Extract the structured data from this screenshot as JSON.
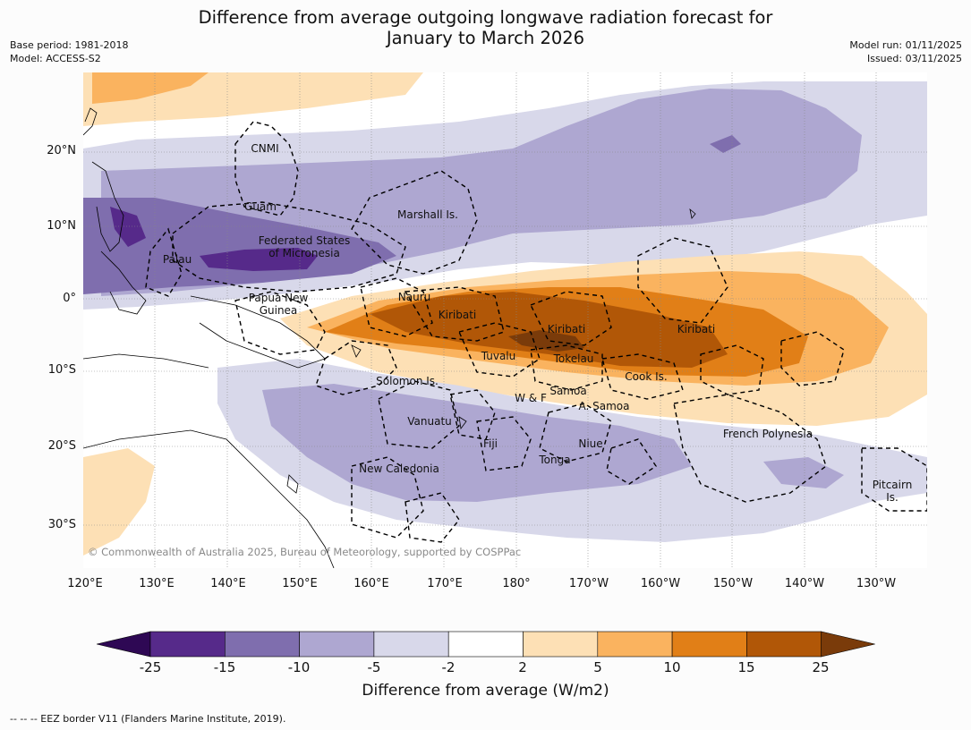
{
  "title_line1": "Difference from average outgoing longwave radiation forecast for",
  "title_line2": "January to March 2026",
  "base_period": "Base period: 1981-2018",
  "model": "Model: ACCESS-S2",
  "model_run": "Model run: 01/11/2025",
  "issued": "Issued: 03/11/2025",
  "lat_labels": [
    "20°N",
    "10°N",
    "0°",
    "10°S",
    "20°S",
    "30°S"
  ],
  "lon_labels": [
    "120°E",
    "130°E",
    "140°E",
    "150°E",
    "160°E",
    "170°E",
    "180°",
    "170°W",
    "160°W",
    "150°W",
    "140°W",
    "130°W"
  ],
  "regions": {
    "cnmi": "CNMI",
    "guam": "Guam",
    "marshall": "Marshall Is.",
    "fsm1": "Federated States",
    "fsm2": "of Micronesia",
    "palau": "Palau",
    "png1": "Papua New",
    "png2": "Guinea",
    "nauru": "Nauru",
    "kiribati_w": "Kiribati",
    "kiribati_c": "Kiribati",
    "kiribati_e": "Kiribati",
    "tuvalu": "Tuvalu",
    "tokelau": "Tokelau",
    "cook": "Cook Is.",
    "solomon": "Solomon Is.",
    "wf": "W & F",
    "samoa": "Samoa",
    "asamoa": "A. Samoa",
    "vanuatu": "Vanuatu",
    "fiji": "Fiji",
    "niue": "Niue",
    "tonga": "Tonga",
    "newcal": "New Caledonia",
    "frpoly": "French Polynesia",
    "pitcairn1": "Pitcairn",
    "pitcairn2": "Is."
  },
  "copyright": "© Commonwealth of Australia 2025, Bureau of Meteorology, supported by COSPPac",
  "colorbar": {
    "ticks": [
      "-25",
      "-15",
      "-10",
      "-5",
      "-2",
      "2",
      "5",
      "10",
      "15",
      "25"
    ],
    "colors": [
      "#562a8a",
      "#7f6eae",
      "#aea7d1",
      "#d8d8ea",
      "#ffffff",
      "#fde0b5",
      "#fab35f",
      "#e17f17",
      "#b15707"
    ],
    "low_color": "#2e0854",
    "high_color": "#7a3b0a",
    "title": "Difference from average (W/m2)"
  },
  "eez_note": "--  --  -- EEZ border V11 (Flanders Marine Institute, 2019)."
}
